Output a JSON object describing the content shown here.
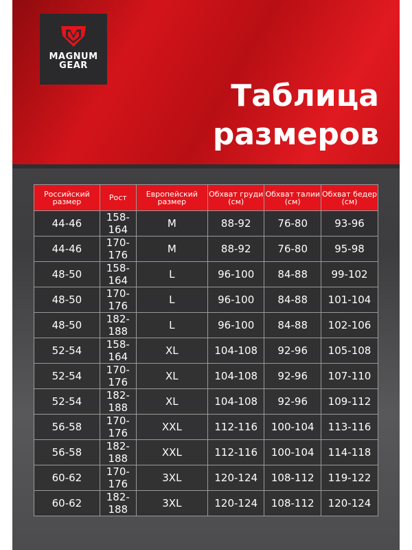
{
  "logo": {
    "text": "MAGNUM GEAR",
    "line1": "MAGNUM",
    "line2": "GEAR"
  },
  "title": {
    "line1": "Таблица",
    "line2": "размеров"
  },
  "colors": {
    "accent": "#e3141b",
    "dark": "#2a2a2c"
  },
  "table": {
    "headers": [
      "Российский размер",
      "Рост",
      "Европейский размер",
      "Обхват груди (см)",
      "Обхват талии (см)",
      "Обхват бедер (см)"
    ],
    "rows": [
      [
        "44-46",
        "158-164",
        "M",
        "88-92",
        "76-80",
        "93-96"
      ],
      [
        "44-46",
        "170-176",
        "M",
        "88-92",
        "76-80",
        "95-98"
      ],
      [
        "48-50",
        "158-164",
        "L",
        "96-100",
        "84-88",
        "99-102"
      ],
      [
        "48-50",
        "170-176",
        "L",
        "96-100",
        "84-88",
        "101-104"
      ],
      [
        "48-50",
        "182-188",
        "L",
        "96-100",
        "84-88",
        "102-106"
      ],
      [
        "52-54",
        "158-164",
        "XL",
        "104-108",
        "92-96",
        "105-108"
      ],
      [
        "52-54",
        "170-176",
        "XL",
        "104-108",
        "92-96",
        "107-110"
      ],
      [
        "52-54",
        "182-188",
        "XL",
        "104-108",
        "92-96",
        "109-112"
      ],
      [
        "56-58",
        "170-176",
        "XXL",
        "112-116",
        "100-104",
        "113-116"
      ],
      [
        "56-58",
        "182-188",
        "XXL",
        "112-116",
        "100-104",
        "114-118"
      ],
      [
        "60-62",
        "170-176",
        "3XL",
        "120-124",
        "108-112",
        "119-122"
      ],
      [
        "60-62",
        "182-188",
        "3XL",
        "120-124",
        "108-112",
        "120-124"
      ]
    ]
  }
}
